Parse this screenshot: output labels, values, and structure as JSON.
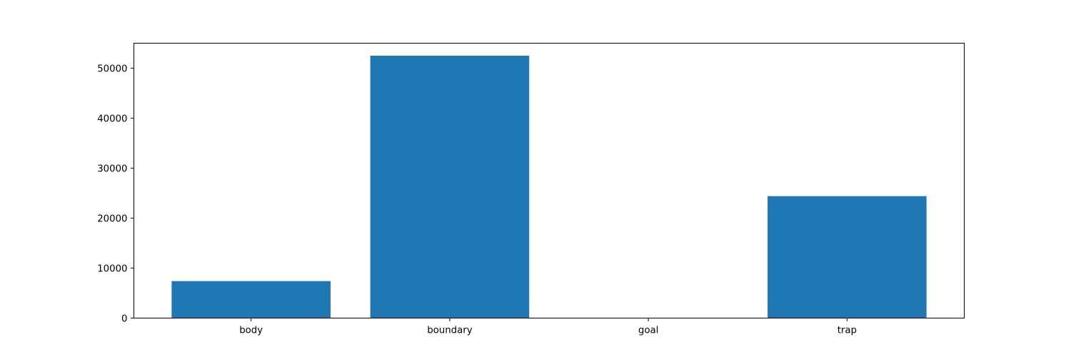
{
  "chart_data": {
    "type": "bar",
    "title": "",
    "xlabel": "",
    "ylabel": "",
    "categories": [
      "body",
      "boundary",
      "goal",
      "trap"
    ],
    "values": [
      7400,
      52500,
      0,
      24400
    ],
    "ylim": [
      0,
      55000
    ],
    "yticks": [
      0,
      10000,
      20000,
      30000,
      40000,
      50000
    ],
    "ytick_labels": [
      "0",
      "10000",
      "20000",
      "30000",
      "40000",
      "50000"
    ],
    "bar_color": "#1f77b4",
    "grid": false,
    "legend": "none"
  }
}
